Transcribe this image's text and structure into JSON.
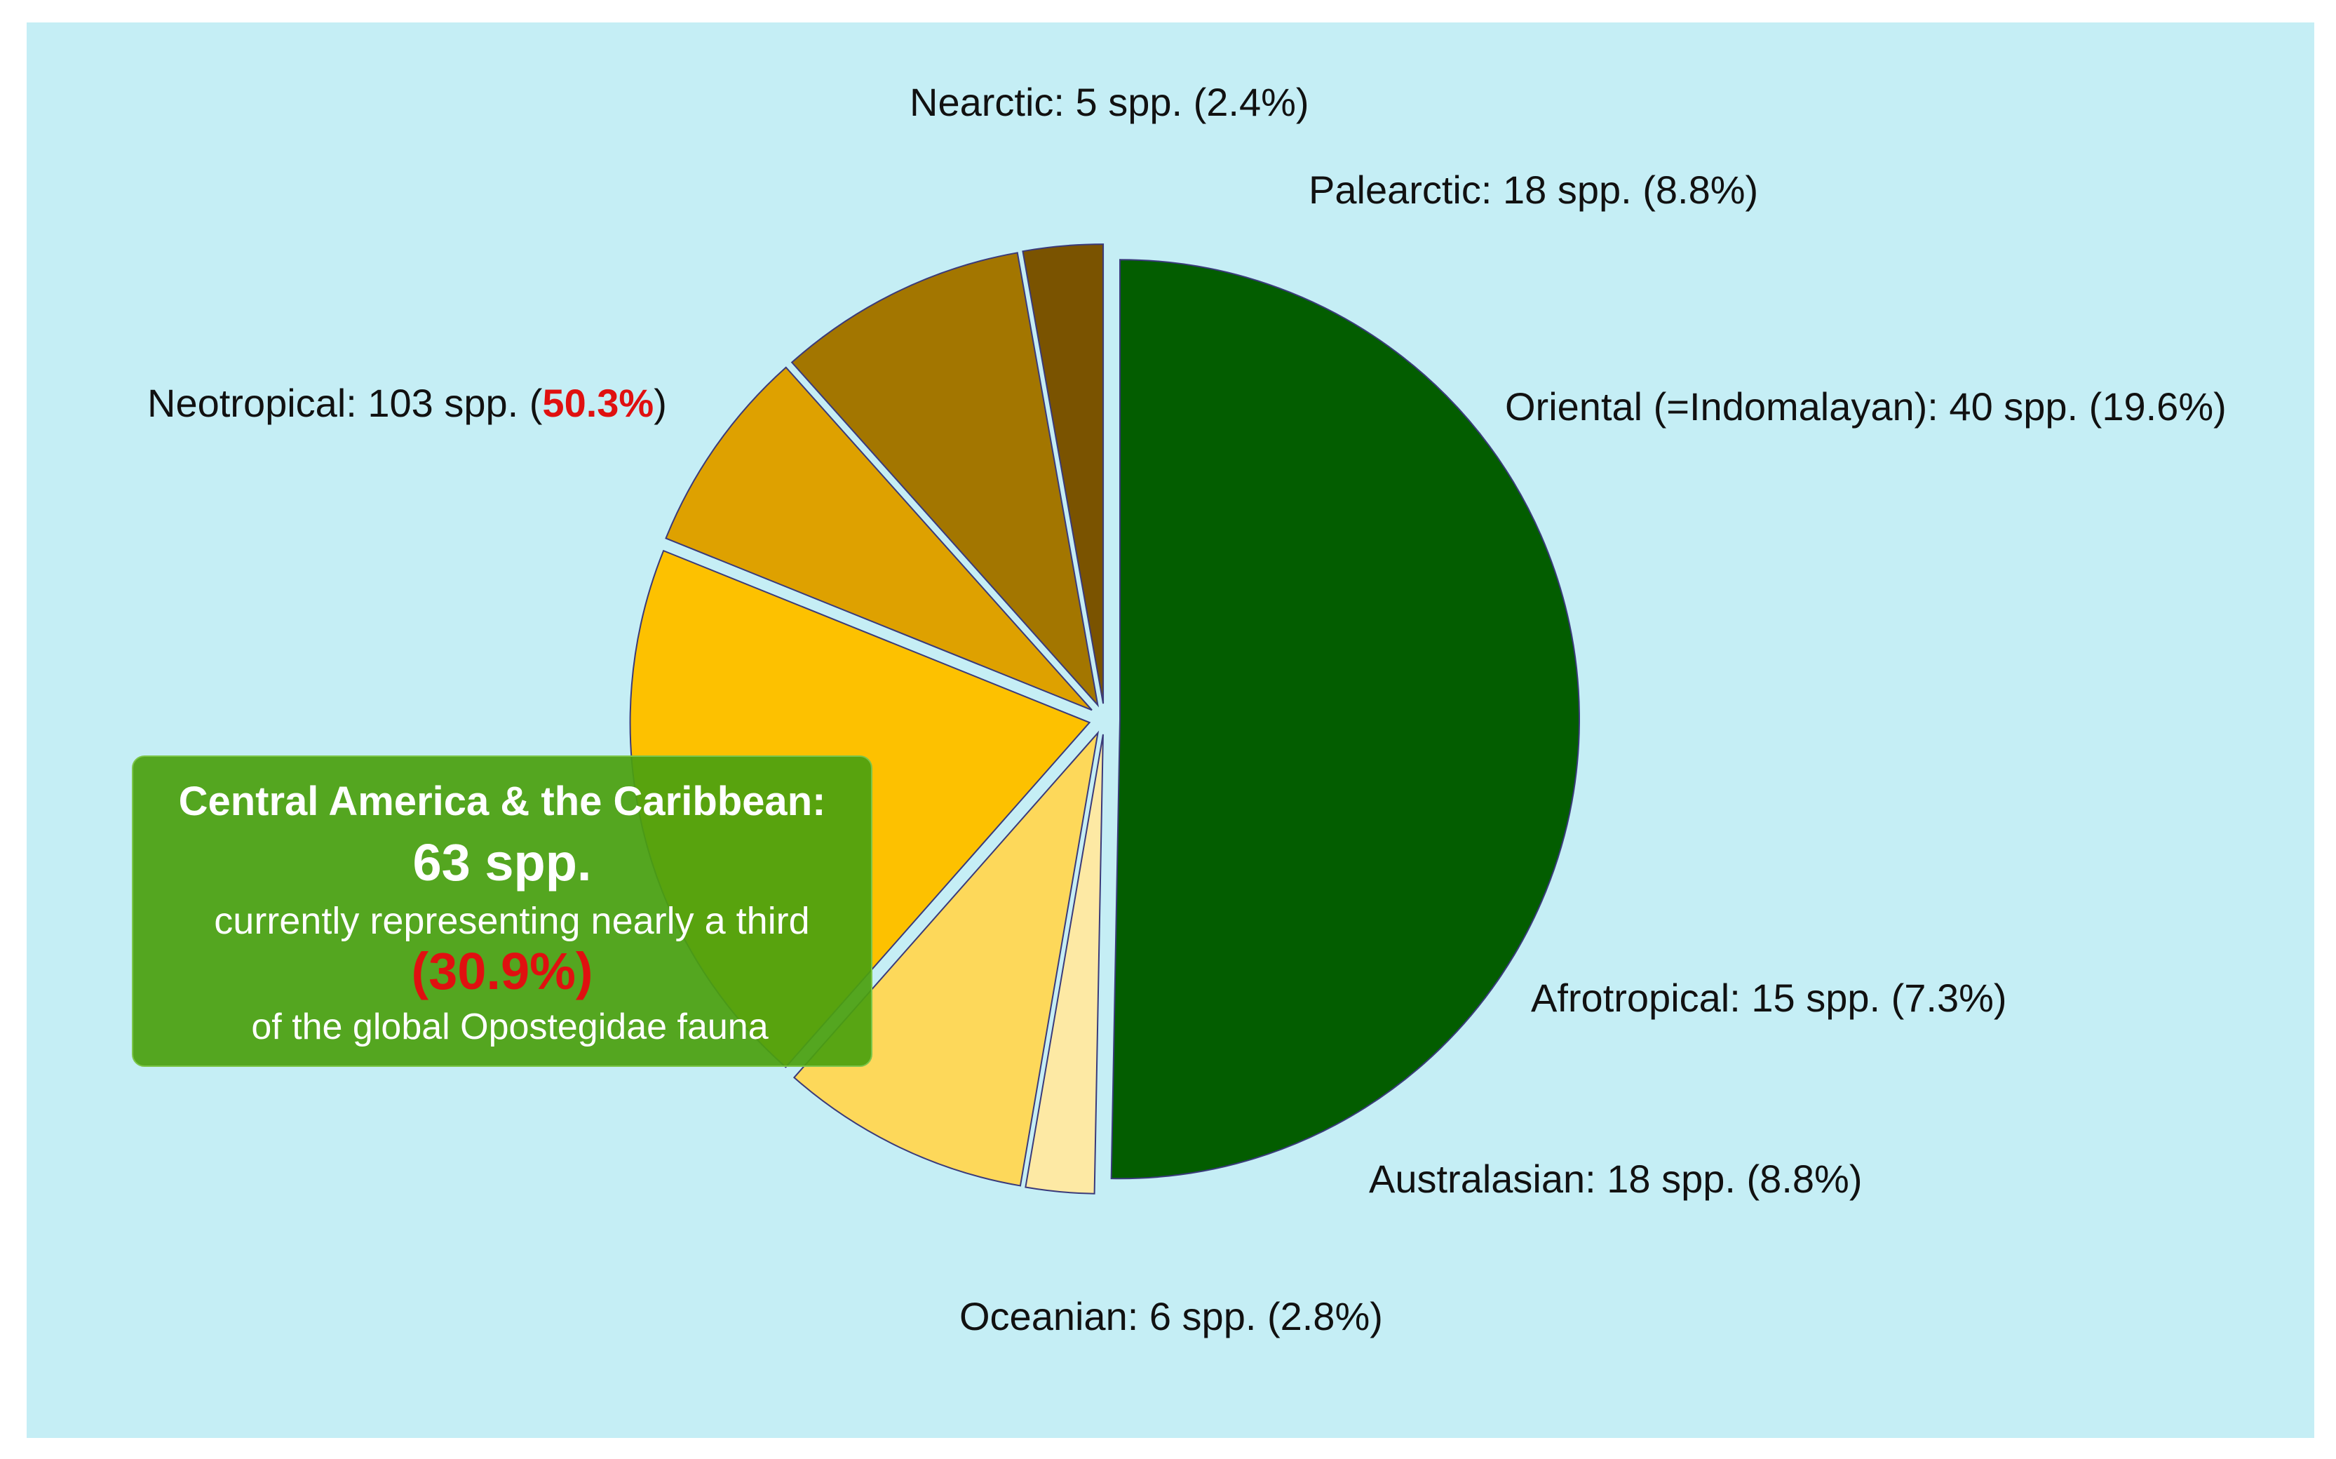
{
  "chart_data": {
    "type": "pie",
    "slices": [
      {
        "name": "Neotropical",
        "count": 103,
        "percent": 50.3,
        "color": "#035d00",
        "label_pre": "Neotropical: 103 spp. (",
        "label_pct": "50.3%",
        "label_post": ")",
        "highlight_percent": true
      },
      {
        "name": "Nearctic",
        "count": 5,
        "percent": 2.4,
        "color": "#fde9a4",
        "label_pre": "Nearctic: 5 spp. (2.4%)",
        "label_pct": "",
        "label_post": ""
      },
      {
        "name": "Palearctic",
        "count": 18,
        "percent": 8.8,
        "color": "#fdd85a",
        "label_pre": "Palearctic: 18 spp. (8.8%)",
        "label_pct": "",
        "label_post": ""
      },
      {
        "name": "Oriental (=Indomalayan)",
        "count": 40,
        "percent": 19.6,
        "color": "#fdc100",
        "label_pre": "Oriental (=Indomalayan): 40 spp. (19.6%)",
        "label_pct": "",
        "label_post": ""
      },
      {
        "name": "Afrotropical",
        "count": 15,
        "percent": 7.3,
        "color": "#dea100",
        "label_pre": "Afrotropical: 15 spp. (7.3%)",
        "label_pct": "",
        "label_post": ""
      },
      {
        "name": "Australasian",
        "count": 18,
        "percent": 8.8,
        "color": "#a37600",
        "label_pre": "Australasian: 18 spp. (8.8%)",
        "label_pct": "",
        "label_post": ""
      },
      {
        "name": "Oceanian",
        "count": 6,
        "percent": 2.8,
        "color": "#7a5300",
        "label_pre": "Oceanian: 6 spp. (2.8%)",
        "label_pct": "",
        "label_post": ""
      }
    ],
    "start_angle_deg": 0,
    "direction": "clockwise",
    "exploded": true
  },
  "colors": {
    "panel_background": "#c5eef5",
    "highlight": "#e01010",
    "callout_background": "#4ba00f"
  },
  "callout": {
    "title": "Central America & the Caribbean:",
    "count": "63 spp.",
    "description": "currently representing nearly a third",
    "percent": "(30.9%)",
    "footer": "of the global Opostegidae fauna"
  }
}
